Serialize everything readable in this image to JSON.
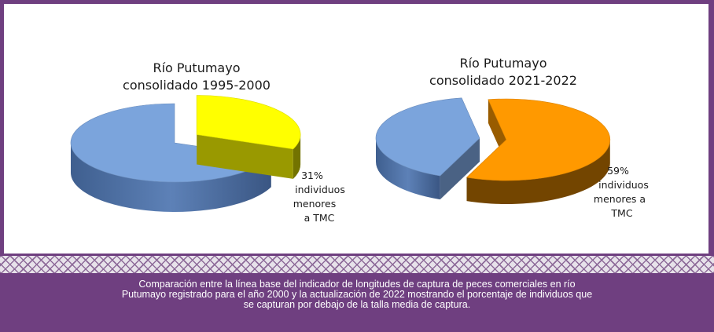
{
  "chart_data": [
    {
      "type": "pie",
      "title_lines": [
        "Río Putumayo",
        "consolidado 1995-2000"
      ],
      "slices": [
        {
          "value": 31,
          "color": "#ffff00",
          "exploded": true
        },
        {
          "value": 69,
          "color": "#7ba4dc",
          "exploded": false
        }
      ],
      "label_lines": [
        "31%",
        "individuos",
        "menores",
        "a TMC"
      ]
    },
    {
      "type": "pie",
      "title_lines": [
        "Río Putumayo",
        "consolidado 2021-2022"
      ],
      "slices": [
        {
          "value": 59,
          "color": "#ff9900",
          "exploded": true
        },
        {
          "value": 41,
          "color": "#7ba4dc",
          "exploded": false
        }
      ],
      "label_lines": [
        "59%",
        "individuos",
        "menores a",
        "TMC"
      ]
    }
  ],
  "caption": {
    "lines": [
      "Comparación entre la línea base del indicador de longitudes de captura de peces comerciales en río",
      "Putumayo registrado para el año 2000 y la actualización de 2022 mostrando el porcentaje de individuos que",
      "se capturan por debajo de la talla media de captura."
    ]
  }
}
